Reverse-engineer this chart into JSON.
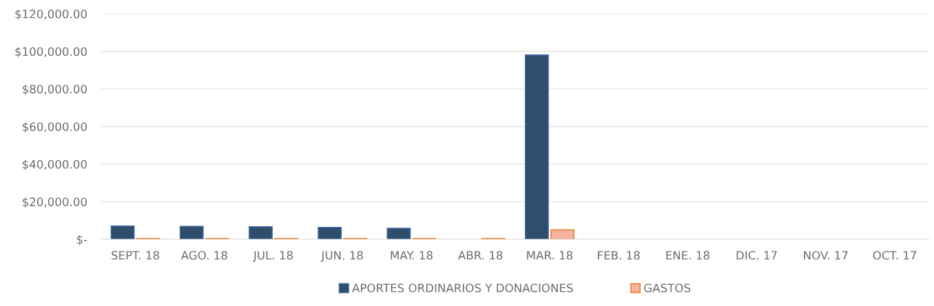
{
  "chart_data": {
    "type": "bar",
    "categories": [
      "SEPT. 18",
      "AGO. 18",
      "JUL. 18",
      "JUN. 18",
      "MAY. 18",
      "ABR. 18",
      "MAR. 18",
      "FEB. 18",
      "ENE. 18",
      "DIC. 17",
      "NOV. 17",
      "OCT. 17"
    ],
    "series": [
      {
        "name": "APORTES ORDINARIOS Y DONACIONES",
        "color": "#2f4e6c",
        "values": [
          7000,
          6800,
          6600,
          6300,
          5800,
          null,
          98000,
          null,
          null,
          null,
          null,
          null
        ]
      },
      {
        "name": "GASTOS",
        "color": "#f4b4a0",
        "values": [
          400,
          400,
          400,
          400,
          400,
          400,
          5000,
          null,
          null,
          null,
          null,
          null
        ]
      }
    ],
    "ylim": [
      0,
      120000
    ],
    "yticks": [
      {
        "value": 0,
        "label": "$-"
      },
      {
        "value": 20000,
        "label": "$20,000.00"
      },
      {
        "value": 40000,
        "label": "$40,000.00"
      },
      {
        "value": 60000,
        "label": "$60,000.00"
      },
      {
        "value": 80000,
        "label": "$80,000.00"
      },
      {
        "value": 100000,
        "label": "$100,000.00"
      },
      {
        "value": 120000,
        "label": "$120,000.00"
      }
    ],
    "grid": "y",
    "legend": "bottom"
  }
}
